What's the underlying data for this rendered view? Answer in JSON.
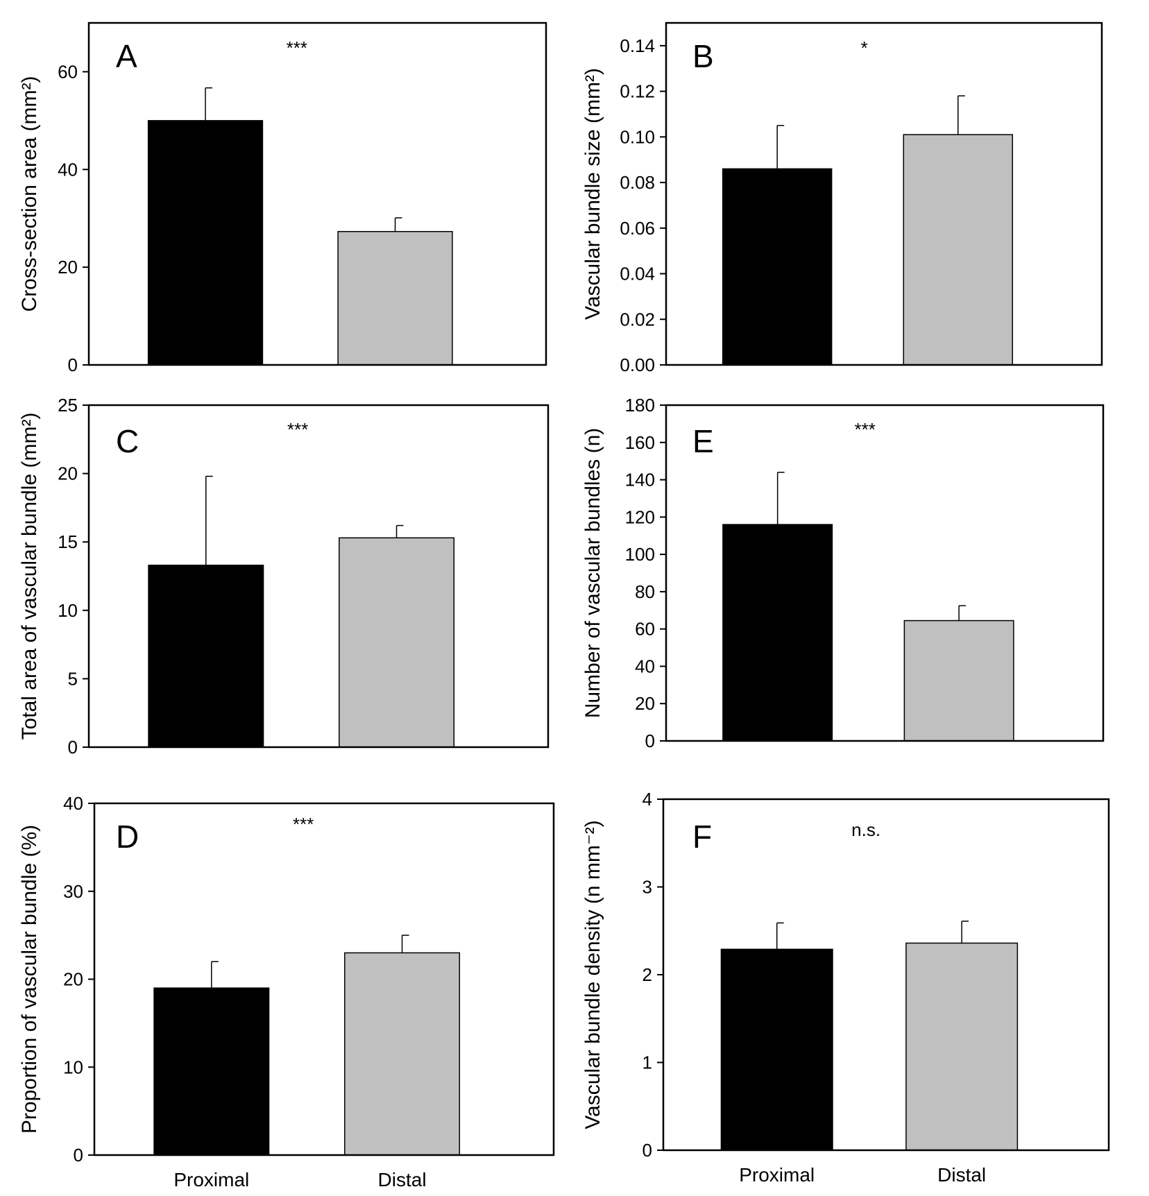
{
  "figure": {
    "bar_colors": {
      "Proximal": "#000000",
      "Distal": "#c0c0c0"
    }
  },
  "chart_data": [
    {
      "panel": "A",
      "type": "bar",
      "categories": [
        "Proximal",
        "Distal"
      ],
      "values": [
        50,
        27.3
      ],
      "errors": [
        6.7,
        2.8
      ],
      "ylabel": "Cross-section area (mm²)",
      "ylim": [
        0,
        70
      ],
      "yticks": [
        0,
        20,
        40,
        60
      ],
      "tick_decimals": 0,
      "significance": "***",
      "show_xlabels": false
    },
    {
      "panel": "B",
      "type": "bar",
      "categories": [
        "Proximal",
        "Distal"
      ],
      "values": [
        0.086,
        0.101
      ],
      "errors": [
        0.019,
        0.017
      ],
      "ylabel": "Vascular bundle size (mm²)",
      "ylim": [
        0,
        0.15
      ],
      "yticks": [
        0.0,
        0.02,
        0.04,
        0.06,
        0.08,
        0.1,
        0.12,
        0.14
      ],
      "tick_decimals": 2,
      "significance": "*",
      "show_xlabels": false
    },
    {
      "panel": "C",
      "type": "bar",
      "categories": [
        "Proximal",
        "Distal"
      ],
      "values": [
        13.3,
        15.3
      ],
      "errors": [
        6.5,
        0.9
      ],
      "ylabel": "Total area of vascular bundle (mm²)",
      "ylim": [
        0,
        25
      ],
      "yticks": [
        0,
        5,
        10,
        15,
        20,
        25
      ],
      "tick_decimals": 0,
      "significance": "***",
      "show_xlabels": false
    },
    {
      "panel": "E",
      "type": "bar",
      "categories": [
        "Proximal",
        "Distal"
      ],
      "values": [
        116,
        64.5
      ],
      "errors": [
        28,
        8
      ],
      "ylabel": "Number of vascular bundles (n)",
      "ylim": [
        0,
        180
      ],
      "yticks": [
        0,
        20,
        40,
        60,
        80,
        100,
        120,
        140,
        160,
        180
      ],
      "tick_decimals": 0,
      "significance": "***",
      "show_xlabels": false
    },
    {
      "panel": "D",
      "type": "bar",
      "categories": [
        "Proximal",
        "Distal"
      ],
      "values": [
        19,
        23
      ],
      "errors": [
        3,
        2
      ],
      "ylabel": "Proportion of vascular bundle (%)",
      "ylim": [
        0,
        40
      ],
      "yticks": [
        0,
        10,
        20,
        30,
        40
      ],
      "tick_decimals": 0,
      "significance": "***",
      "show_xlabels": true
    },
    {
      "panel": "F",
      "type": "bar",
      "categories": [
        "Proximal",
        "Distal"
      ],
      "values": [
        2.29,
        2.36
      ],
      "errors": [
        0.3,
        0.25
      ],
      "ylabel": "Vascular bundle density (n mm⁻²)",
      "ylim": [
        0,
        4
      ],
      "yticks": [
        0,
        1,
        2,
        3,
        4
      ],
      "tick_decimals": 0,
      "significance": "n.s.",
      "show_xlabels": true
    }
  ]
}
